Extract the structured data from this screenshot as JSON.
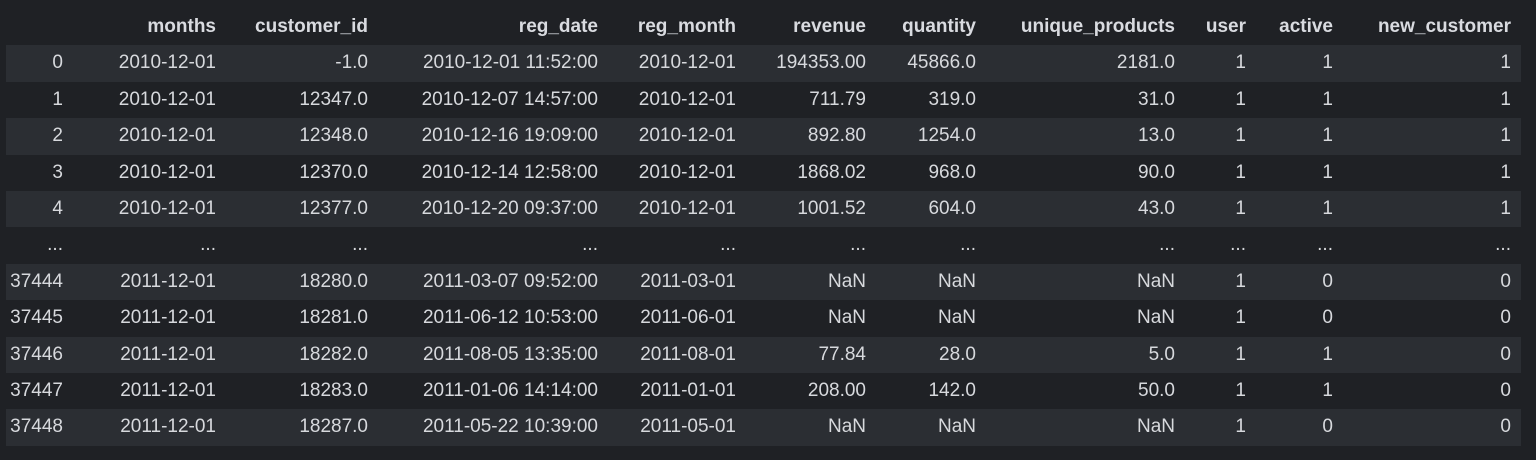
{
  "columns": [
    "",
    "months",
    "customer_id",
    "reg_date",
    "reg_month",
    "revenue",
    "quantity",
    "unique_products",
    "user",
    "active",
    "new_customer"
  ],
  "rows": [
    [
      "0",
      "2010-12-01",
      "-1.0",
      "2010-12-01 11:52:00",
      "2010-12-01",
      "194353.00",
      "45866.0",
      "2181.0",
      "1",
      "1",
      "1"
    ],
    [
      "1",
      "2010-12-01",
      "12347.0",
      "2010-12-07 14:57:00",
      "2010-12-01",
      "711.79",
      "319.0",
      "31.0",
      "1",
      "1",
      "1"
    ],
    [
      "2",
      "2010-12-01",
      "12348.0",
      "2010-12-16 19:09:00",
      "2010-12-01",
      "892.80",
      "1254.0",
      "13.0",
      "1",
      "1",
      "1"
    ],
    [
      "3",
      "2010-12-01",
      "12370.0",
      "2010-12-14 12:58:00",
      "2010-12-01",
      "1868.02",
      "968.0",
      "90.0",
      "1",
      "1",
      "1"
    ],
    [
      "4",
      "2010-12-01",
      "12377.0",
      "2010-12-20 09:37:00",
      "2010-12-01",
      "1001.52",
      "604.0",
      "43.0",
      "1",
      "1",
      "1"
    ],
    [
      "...",
      "...",
      "...",
      "...",
      "...",
      "...",
      "...",
      "...",
      "...",
      "...",
      "..."
    ],
    [
      "37444",
      "2011-12-01",
      "18280.0",
      "2011-03-07 09:52:00",
      "2011-03-01",
      "NaN",
      "NaN",
      "NaN",
      "1",
      "0",
      "0"
    ],
    [
      "37445",
      "2011-12-01",
      "18281.0",
      "2011-06-12 10:53:00",
      "2011-06-01",
      "NaN",
      "NaN",
      "NaN",
      "1",
      "0",
      "0"
    ],
    [
      "37446",
      "2011-12-01",
      "18282.0",
      "2011-08-05 13:35:00",
      "2011-08-01",
      "77.84",
      "28.0",
      "5.0",
      "1",
      "1",
      "0"
    ],
    [
      "37447",
      "2011-12-01",
      "18283.0",
      "2011-01-06 14:14:00",
      "2011-01-01",
      "208.00",
      "142.0",
      "50.0",
      "1",
      "1",
      "0"
    ],
    [
      "37448",
      "2011-12-01",
      "18287.0",
      "2011-05-22 10:39:00",
      "2011-05-01",
      "NaN",
      "NaN",
      "NaN",
      "1",
      "0",
      "0"
    ]
  ]
}
